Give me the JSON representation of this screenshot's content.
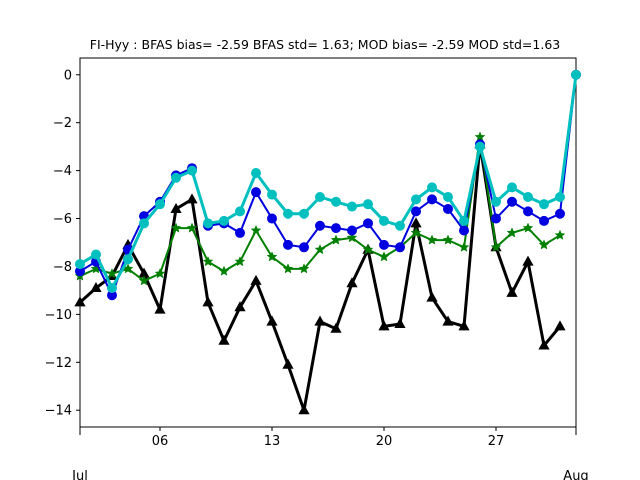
{
  "chart_data": {
    "type": "line",
    "title": "FI-Hyy   : BFAS bias= -2.59 BFAS std= 1.63; MOD bias= -2.59 MOD std=1.63",
    "xlabel": "",
    "ylabel": "",
    "xlim": [
      1,
      32
    ],
    "ylim": [
      -14.7,
      0.7
    ],
    "grid": false,
    "legend": "none",
    "x_ticks": [
      {
        "x": 6,
        "label": "06"
      },
      {
        "x": 13,
        "label": "13"
      },
      {
        "x": 20,
        "label": "20"
      },
      {
        "x": 27,
        "label": "27"
      }
    ],
    "x_minor_ticks": [
      1,
      32
    ],
    "x_month_labels": [
      {
        "x": 1,
        "label": "Jul"
      },
      {
        "x": 32,
        "label": "Aug"
      }
    ],
    "y_ticks": [
      0,
      -2,
      -4,
      -6,
      -8,
      -10,
      -12,
      -14
    ],
    "series": [
      {
        "color": "#000000",
        "marker": "triangle",
        "line_width": 3,
        "x": [
          1,
          2,
          3,
          4,
          5,
          6,
          7,
          8,
          9,
          10,
          11,
          12,
          13,
          14,
          15,
          16,
          17,
          18,
          19,
          20,
          21,
          22,
          23,
          24,
          25,
          26,
          27,
          28,
          29,
          30,
          31
        ],
        "values": [
          -9.5,
          -8.9,
          -8.4,
          -7.1,
          -8.3,
          -9.8,
          -5.6,
          -5.2,
          -9.5,
          -11.1,
          -9.7,
          -8.6,
          -10.3,
          -12.1,
          -14.0,
          -10.3,
          -10.6,
          -8.7,
          -7.3,
          -10.5,
          -10.4,
          -6.2,
          -9.3,
          -10.3,
          -10.5,
          -2.9,
          -7.2,
          -9.1,
          -7.8,
          -11.3,
          -10.5
        ]
      },
      {
        "color": "#008000",
        "marker": "star",
        "line_width": 2,
        "x": [
          1,
          2,
          3,
          4,
          5,
          6,
          7,
          8,
          9,
          10,
          11,
          12,
          13,
          14,
          15,
          16,
          17,
          18,
          19,
          20,
          21,
          22,
          23,
          24,
          25,
          26,
          27,
          28,
          29,
          30,
          31
        ],
        "values": [
          -8.4,
          -8.1,
          -8.3,
          -8.1,
          -8.6,
          -8.3,
          -6.4,
          -6.4,
          -7.8,
          -8.2,
          -7.8,
          -6.5,
          -7.6,
          -8.1,
          -8.1,
          -7.3,
          -6.9,
          -6.8,
          -7.3,
          -7.6,
          -7.2,
          -6.6,
          -6.9,
          -6.9,
          -7.2,
          -2.6,
          -7.2,
          -6.6,
          -6.4,
          -7.1,
          -6.7
        ]
      },
      {
        "color": "#0000e0",
        "marker": "circle",
        "line_width": 2,
        "x": [
          1,
          2,
          3,
          4,
          5,
          6,
          7,
          8,
          9,
          10,
          11,
          12,
          13,
          14,
          15,
          16,
          17,
          18,
          19,
          20,
          21,
          22,
          23,
          24,
          25,
          26,
          27,
          28,
          29,
          30,
          31,
          32
        ],
        "values": [
          -8.2,
          -7.8,
          -9.2,
          -7.3,
          -5.9,
          -5.3,
          -4.2,
          -3.9,
          -6.3,
          -6.2,
          -6.6,
          -4.9,
          -6.0,
          -7.1,
          -7.2,
          -6.3,
          -6.4,
          -6.5,
          -6.2,
          -7.1,
          -7.2,
          -5.7,
          -5.2,
          -5.6,
          -6.5,
          -2.9,
          -6.0,
          -5.3,
          -5.7,
          -6.1,
          -5.8,
          0.0
        ]
      },
      {
        "color": "#00bfbf",
        "marker": "circle",
        "line_width": 3,
        "x": [
          1,
          2,
          3,
          4,
          5,
          6,
          7,
          8,
          9,
          10,
          11,
          12,
          13,
          14,
          15,
          16,
          17,
          18,
          19,
          20,
          21,
          22,
          23,
          24,
          25,
          26,
          27,
          28,
          29,
          30,
          31,
          32
        ],
        "values": [
          -7.9,
          -7.5,
          -8.9,
          -7.7,
          -6.2,
          -5.4,
          -4.3,
          -4.0,
          -6.2,
          -6.1,
          -5.7,
          -4.1,
          -5.0,
          -5.8,
          -5.8,
          -5.1,
          -5.3,
          -5.5,
          -5.4,
          -6.1,
          -6.3,
          -5.2,
          -4.7,
          -5.1,
          -6.1,
          -3.0,
          -5.3,
          -4.7,
          -5.1,
          -5.4,
          -5.1,
          0.0
        ]
      }
    ]
  }
}
